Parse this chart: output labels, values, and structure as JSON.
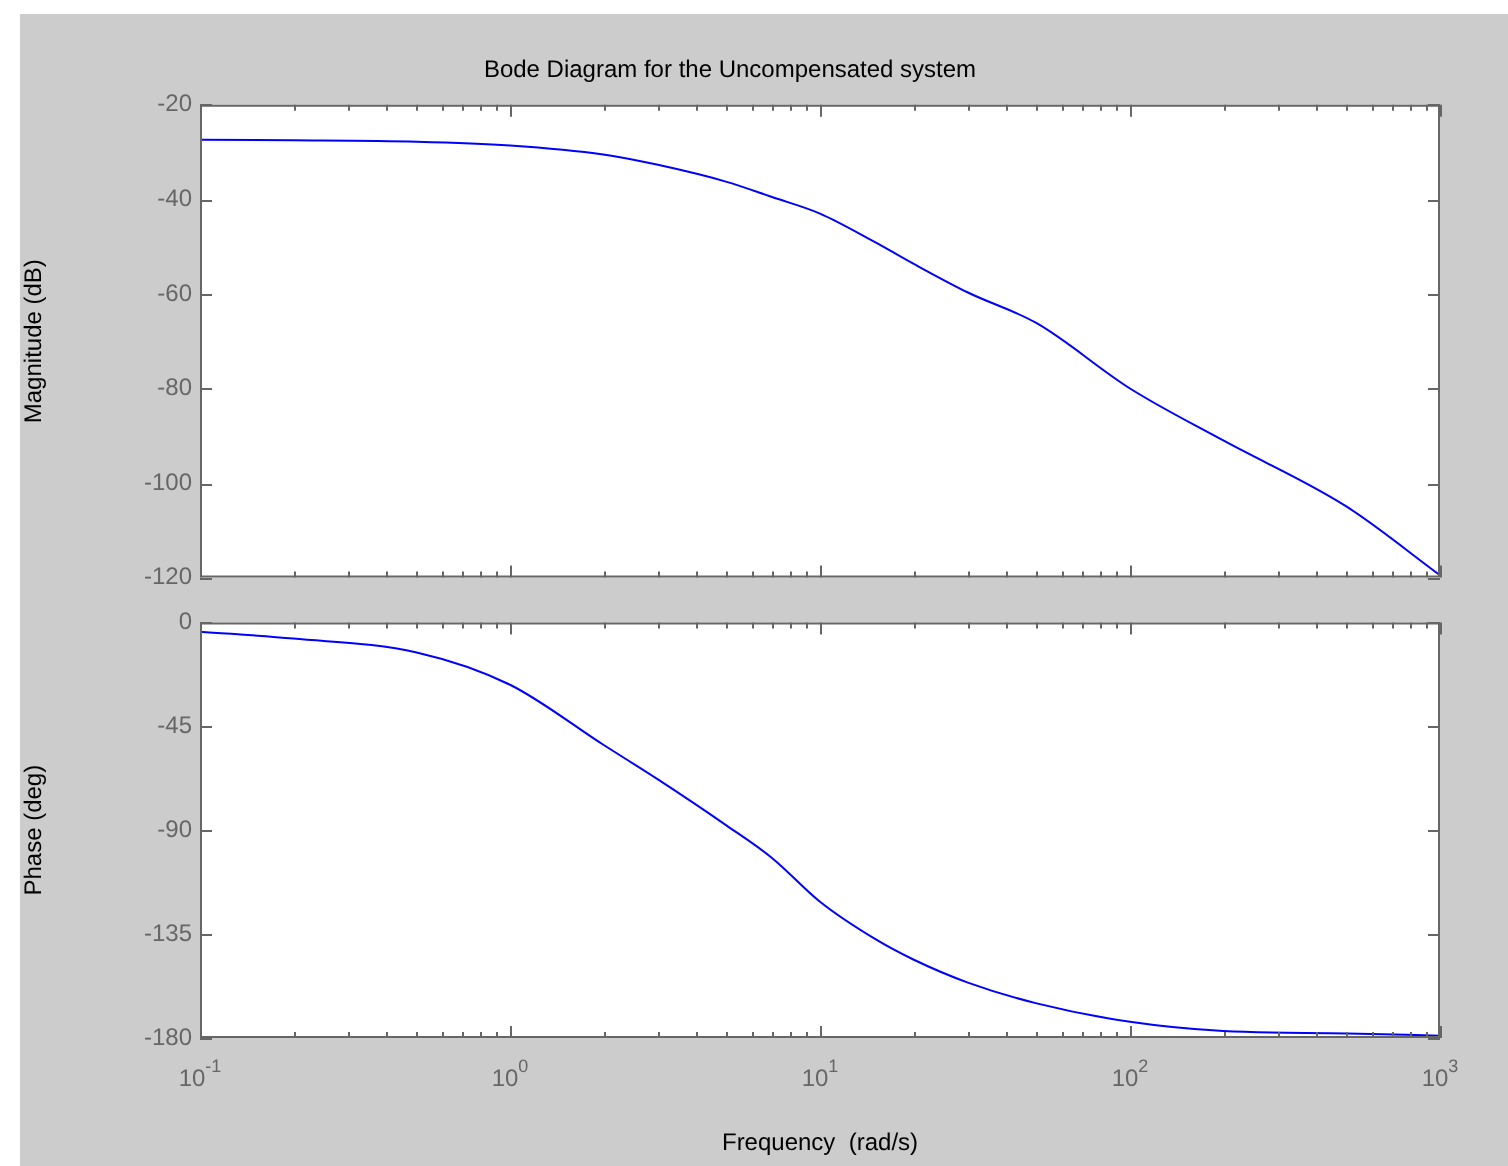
{
  "chart_data": [
    {
      "type": "line",
      "title": "Bode Diagram for the Uncompensated system",
      "ylabel": "Magnitude (dB)",
      "log": "x",
      "marker": "none",
      "tick_labels": "y",
      "x": [
        0.1,
        0.2,
        0.5,
        1,
        2,
        3,
        5,
        7,
        10,
        15,
        20,
        30,
        50,
        100,
        200,
        500,
        1000
      ],
      "series": [
        {
          "color": "#0000ff",
          "values": [
            -27.4,
            -27.5,
            -27.8,
            -28.6,
            -30.5,
            -32.7,
            -36.3,
            -39.5,
            -43,
            -49,
            -53.6,
            -59.7,
            -66.2,
            -80,
            -91,
            -105,
            -119.5
          ]
        }
      ],
      "xlim": [
        0.1,
        1000
      ],
      "xticks": [
        {
          "value": 0.1,
          "label": null
        },
        {
          "value": 0.2,
          "label": null
        },
        {
          "value": 0.3,
          "label": null
        },
        {
          "value": 0.4,
          "label": null
        },
        {
          "value": 0.5,
          "label": null
        },
        {
          "value": 0.6,
          "label": null
        },
        {
          "value": 0.7,
          "label": null
        },
        {
          "value": 0.8,
          "label": null
        },
        {
          "value": 0.9,
          "label": null
        },
        {
          "value": 1,
          "label": null
        },
        {
          "value": 2,
          "label": null
        },
        {
          "value": 3,
          "label": null
        },
        {
          "value": 4,
          "label": null
        },
        {
          "value": 5,
          "label": null
        },
        {
          "value": 6,
          "label": null
        },
        {
          "value": 7,
          "label": null
        },
        {
          "value": 8,
          "label": null
        },
        {
          "value": 9,
          "label": null
        },
        {
          "value": 10,
          "label": null
        },
        {
          "value": 20,
          "label": null
        },
        {
          "value": 30,
          "label": null
        },
        {
          "value": 40,
          "label": null
        },
        {
          "value": 50,
          "label": null
        },
        {
          "value": 60,
          "label": null
        },
        {
          "value": 70,
          "label": null
        },
        {
          "value": 80,
          "label": null
        },
        {
          "value": 90,
          "label": null
        },
        {
          "value": 100,
          "label": null
        },
        {
          "value": 200,
          "label": null
        },
        {
          "value": 300,
          "label": null
        },
        {
          "value": 400,
          "label": null
        },
        {
          "value": 500,
          "label": null
        },
        {
          "value": 600,
          "label": null
        },
        {
          "value": 700,
          "label": null
        },
        {
          "value": 800,
          "label": null
        },
        {
          "value": 900,
          "label": null
        },
        {
          "value": 1000,
          "label": null
        }
      ],
      "ylim": [
        -120,
        -20
      ],
      "yticks": [
        -120,
        -100,
        -80,
        -60,
        -40,
        -20
      ]
    },
    {
      "type": "line",
      "xlabel": "Frequency  (rad/s)",
      "ylabel": "Phase (deg)",
      "log": "x",
      "marker": "none",
      "x": [
        0.1,
        0.2,
        0.5,
        1,
        2,
        3,
        5,
        7,
        10,
        15,
        20,
        30,
        50,
        100,
        200,
        500,
        1000
      ],
      "series": [
        {
          "color": "#0000ff",
          "values": [
            -4,
            -7,
            -13,
            -27,
            -53,
            -68,
            -88,
            -102,
            -121,
            -137,
            -146,
            -156,
            -165,
            -173,
            -177,
            -178,
            -179
          ]
        }
      ],
      "xlim": [
        0.1,
        1000
      ],
      "xticks": [
        {
          "value": 0.1,
          "label": "10$^{-1}$"
        },
        {
          "value": 0.2,
          "label": null
        },
        {
          "value": 0.3,
          "label": null
        },
        {
          "value": 0.4,
          "label": null
        },
        {
          "value": 0.5,
          "label": null
        },
        {
          "value": 0.6,
          "label": null
        },
        {
          "value": 0.7,
          "label": null
        },
        {
          "value": 0.8,
          "label": null
        },
        {
          "value": 0.9,
          "label": null
        },
        {
          "value": 1,
          "label": "10$^{0}$"
        },
        {
          "value": 2,
          "label": null
        },
        {
          "value": 3,
          "label": null
        },
        {
          "value": 4,
          "label": null
        },
        {
          "value": 5,
          "label": null
        },
        {
          "value": 6,
          "label": null
        },
        {
          "value": 7,
          "label": null
        },
        {
          "value": 8,
          "label": null
        },
        {
          "value": 9,
          "label": null
        },
        {
          "value": 10,
          "label": "10$^{1}$"
        },
        {
          "value": 20,
          "label": null
        },
        {
          "value": 30,
          "label": null
        },
        {
          "value": 40,
          "label": null
        },
        {
          "value": 50,
          "label": null
        },
        {
          "value": 60,
          "label": null
        },
        {
          "value": 70,
          "label": null
        },
        {
          "value": 80,
          "label": null
        },
        {
          "value": 90,
          "label": null
        },
        {
          "value": 100,
          "label": "10$^{2}$"
        },
        {
          "value": 200,
          "label": null
        },
        {
          "value": 300,
          "label": null
        },
        {
          "value": 400,
          "label": null
        },
        {
          "value": 500,
          "label": null
        },
        {
          "value": 600,
          "label": null
        },
        {
          "value": 700,
          "label": null
        },
        {
          "value": 800,
          "label": null
        },
        {
          "value": 900,
          "label": null
        },
        {
          "value": 1000,
          "label": "10$^{3}$"
        }
      ],
      "ylim": [
        -180,
        0
      ],
      "yticks": [
        -180,
        -135,
        -90,
        -45,
        0
      ]
    }
  ]
}
